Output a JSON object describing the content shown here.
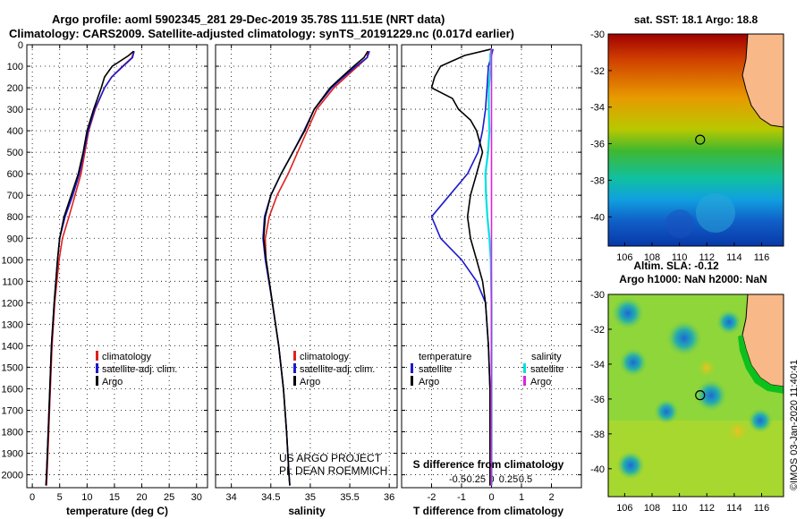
{
  "header": {
    "title_line1": "Argo profile: aoml 5902345_281 29-Dec-2019 35.78S 111.51E (NRT data)",
    "title_line2": "Climatology: CARS2009. Satellite-adjusted climatology: synTS_20191229.nc (0.017d earlier)"
  },
  "colors": {
    "climatology": "#e02020",
    "satellite": "#1a1acc",
    "argo": "#000000",
    "satellite_salinity": "#00e0e0",
    "argo_salinity": "#e020e0"
  },
  "depth_axis": {
    "min": 0,
    "max": 2060,
    "ticks": [
      0,
      100,
      200,
      300,
      400,
      500,
      600,
      700,
      800,
      900,
      1000,
      1100,
      1200,
      1300,
      1400,
      1500,
      1600,
      1700,
      1800,
      1900,
      2000
    ],
    "tick_labels": [
      "0",
      "100",
      "200",
      "300",
      "400",
      "500",
      "600",
      "700",
      "800",
      "900",
      "1000",
      "1100",
      "1200",
      "1300",
      "1400",
      "1500",
      "1600",
      "1700",
      "1800",
      "1900",
      "2000"
    ]
  },
  "chart_data": [
    {
      "type": "line",
      "id": "temperature",
      "xlabel": "temperature (deg C)",
      "xlim": [
        -1,
        32
      ],
      "xticks": [
        0,
        5,
        10,
        15,
        20,
        25,
        30
      ],
      "xtick_labels": [
        "0",
        "5",
        "10",
        "15",
        "20",
        "25",
        "30"
      ],
      "legend": [
        "climatology",
        "satellite-adj. clim.",
        "Argo"
      ],
      "series": [
        {
          "name": "climatology",
          "depth": [
            30,
            60,
            100,
            150,
            200,
            300,
            400,
            500,
            600,
            700,
            800,
            900,
            1000,
            1200,
            1400,
            1600,
            1800,
            2000,
            2050
          ],
          "values": [
            18.5,
            18.2,
            16.5,
            14.5,
            13.2,
            11.5,
            10.3,
            9.6,
            8.9,
            7.8,
            6.7,
            5.5,
            4.9,
            4.1,
            3.6,
            3.3,
            3.0,
            2.7,
            2.6
          ]
        },
        {
          "name": "satellite-adj. clim.",
          "depth": [
            30,
            60,
            100,
            150,
            200,
            300,
            400,
            500,
            600,
            700,
            800,
            900,
            1000,
            1200,
            1400,
            1600,
            1800,
            2000,
            2050
          ],
          "values": [
            18.6,
            18.3,
            16.6,
            14.5,
            13.2,
            11.4,
            10.2,
            9.4,
            8.6,
            7.4,
            6.0,
            5.0,
            4.6,
            4.0,
            3.5,
            3.2,
            2.9,
            2.6,
            2.5
          ]
        },
        {
          "name": "Argo",
          "depth": [
            30,
            50,
            100,
            150,
            200,
            300,
            400,
            500,
            600,
            700,
            800,
            900,
            1000,
            1200,
            1400,
            1600,
            1800,
            2000,
            2050
          ],
          "values": [
            18.5,
            17.6,
            14.6,
            13.2,
            12.6,
            11.2,
            10.0,
            9.3,
            8.4,
            7.1,
            5.8,
            5.0,
            4.6,
            4.0,
            3.5,
            3.2,
            2.9,
            2.6,
            2.5
          ]
        }
      ]
    },
    {
      "type": "line",
      "id": "salinity",
      "xlabel": "salinity",
      "xlim": [
        33.8,
        36.1
      ],
      "xticks": [
        34,
        34.5,
        35,
        35.5,
        36
      ],
      "xtick_labels": [
        "34",
        "34.5",
        "35",
        "35.5",
        "36"
      ],
      "legend": [
        "climatology",
        "satellite-adj. clim.",
        "Argo"
      ],
      "series": [
        {
          "name": "climatology",
          "depth": [
            30,
            60,
            100,
            150,
            200,
            300,
            400,
            500,
            600,
            700,
            800,
            900,
            1000,
            1200,
            1400,
            1600,
            1800,
            2000,
            2050
          ],
          "values": [
            35.73,
            35.72,
            35.6,
            35.45,
            35.3,
            35.08,
            34.96,
            34.84,
            34.72,
            34.58,
            34.48,
            34.43,
            34.44,
            34.52,
            34.6,
            34.66,
            34.7,
            34.73,
            34.74
          ]
        },
        {
          "name": "satellite-adj. clim.",
          "depth": [
            30,
            60,
            100,
            150,
            200,
            300,
            400,
            500,
            600,
            700,
            800,
            900,
            1000,
            1200,
            1400,
            1600,
            1800,
            2000,
            2050
          ],
          "values": [
            35.75,
            35.72,
            35.58,
            35.42,
            35.27,
            35.05,
            34.92,
            34.78,
            34.63,
            34.5,
            34.42,
            34.4,
            34.43,
            34.52,
            34.6,
            34.66,
            34.7,
            34.73,
            34.74
          ]
        },
        {
          "name": "Argo",
          "depth": [
            30,
            60,
            100,
            150,
            200,
            300,
            400,
            500,
            600,
            700,
            800,
            900,
            1000,
            1200,
            1400,
            1600,
            1800,
            2000,
            2050
          ],
          "values": [
            35.73,
            35.68,
            35.55,
            35.4,
            35.25,
            35.05,
            34.93,
            34.78,
            34.63,
            34.5,
            34.43,
            34.41,
            34.44,
            34.52,
            34.6,
            34.66,
            34.7,
            34.73,
            34.74
          ]
        }
      ],
      "annotations": [
        "US ARGO PROJECT",
        "PI: DEAN ROEMMICH"
      ]
    },
    {
      "type": "line",
      "id": "difference",
      "xlabel": "T difference from climatology",
      "xlim": [
        -3,
        3
      ],
      "xticks": [
        -2,
        -1,
        0,
        1,
        2
      ],
      "xtick_labels": [
        "-2",
        "-1",
        "0",
        "1",
        "2"
      ],
      "top_label": "S difference from climatology",
      "top_ticks": [
        -0.5,
        -0.25,
        0,
        0.25,
        0.5
      ],
      "top_tick_labels": [
        "-0.5",
        "-0.25",
        "0",
        "0.25",
        "0.5"
      ],
      "legend_temperature": {
        "title": "temperature",
        "items": [
          "satellite",
          "Argo"
        ]
      },
      "legend_salinity": {
        "title": "salinity",
        "items": [
          "satellite",
          "Argo"
        ]
      },
      "series": [
        {
          "name": "T satellite",
          "depth": [
            20,
            50,
            100,
            200,
            300,
            400,
            500,
            600,
            700,
            800,
            900,
            1000,
            1100,
            1200,
            1400,
            1600,
            1800,
            2000,
            2050
          ],
          "values": [
            0.05,
            0,
            -0.1,
            -0.15,
            -0.2,
            -0.3,
            -0.45,
            -0.8,
            -1.4,
            -2.0,
            -1.7,
            -1.0,
            -0.5,
            -0.2,
            -0.1,
            -0.05,
            -0.05,
            -0.05,
            -0.05
          ]
        },
        {
          "name": "T Argo",
          "depth": [
            20,
            50,
            100,
            150,
            200,
            250,
            300,
            350,
            400,
            500,
            600,
            700,
            800,
            900,
            1000,
            1100,
            1200,
            1400,
            1600,
            1800,
            2000,
            2050
          ],
          "values": [
            0,
            -0.9,
            -1.7,
            -1.9,
            -2.0,
            -1.3,
            -1.1,
            -0.7,
            -0.5,
            -0.3,
            -0.5,
            -0.7,
            -0.8,
            -0.7,
            -0.5,
            -0.3,
            -0.2,
            -0.1,
            -0.05,
            -0.05,
            -0.05,
            -0.05
          ]
        },
        {
          "name": "S satellite",
          "depth": [
            20,
            50,
            100,
            200,
            300,
            400,
            500,
            600,
            700,
            800,
            900,
            1000,
            1200,
            1400,
            1600,
            1800,
            2000,
            2050
          ],
          "values": [
            0,
            -0.02,
            -0.01,
            -0.04,
            -0.04,
            -0.03,
            -0.05,
            -0.09,
            -0.08,
            -0.06,
            -0.03,
            -0.01,
            0,
            0,
            0,
            0,
            0,
            0
          ]
        },
        {
          "name": "S Argo",
          "depth": [
            20,
            50,
            100,
            200,
            300,
            400,
            500,
            600,
            700,
            800,
            900,
            1000,
            1200,
            1400,
            1600,
            1800,
            2000,
            2050
          ],
          "values": [
            0,
            0,
            0,
            0,
            0,
            0,
            0,
            0,
            0,
            0,
            0,
            0,
            0,
            0,
            0,
            0,
            0,
            0
          ]
        }
      ]
    }
  ],
  "maps": [
    {
      "id": "sst",
      "title_line1": "sat. SST: 18.1 Argo: 18.8",
      "title_line2": "",
      "xticks": [
        106,
        108,
        110,
        112,
        114,
        116
      ],
      "xtick_labels": [
        "106",
        "108",
        "110",
        "112",
        "114",
        "116"
      ],
      "yticks": [
        -30,
        -32,
        -34,
        -36,
        -38,
        -40
      ],
      "ytick_labels": [
        "-30",
        "-32",
        "-34",
        "-36",
        "-38",
        "-40"
      ]
    },
    {
      "id": "sla",
      "title_line1": "Altim. SLA: -0.12",
      "title_line2": "Argo h1000: NaN h2000: NaN",
      "xticks": [
        106,
        108,
        110,
        112,
        114,
        116
      ],
      "xtick_labels": [
        "106",
        "108",
        "110",
        "112",
        "114",
        "116"
      ],
      "yticks": [
        -30,
        -32,
        -34,
        -36,
        -38,
        -40
      ],
      "ytick_labels": [
        "-30",
        "-32",
        "-34",
        "-36",
        "-38",
        "-40"
      ]
    }
  ],
  "float_position": {
    "lon": 111.51,
    "lat": -35.78
  },
  "timestamp": "©IMOS 03-Jan-2020 11:40:41"
}
